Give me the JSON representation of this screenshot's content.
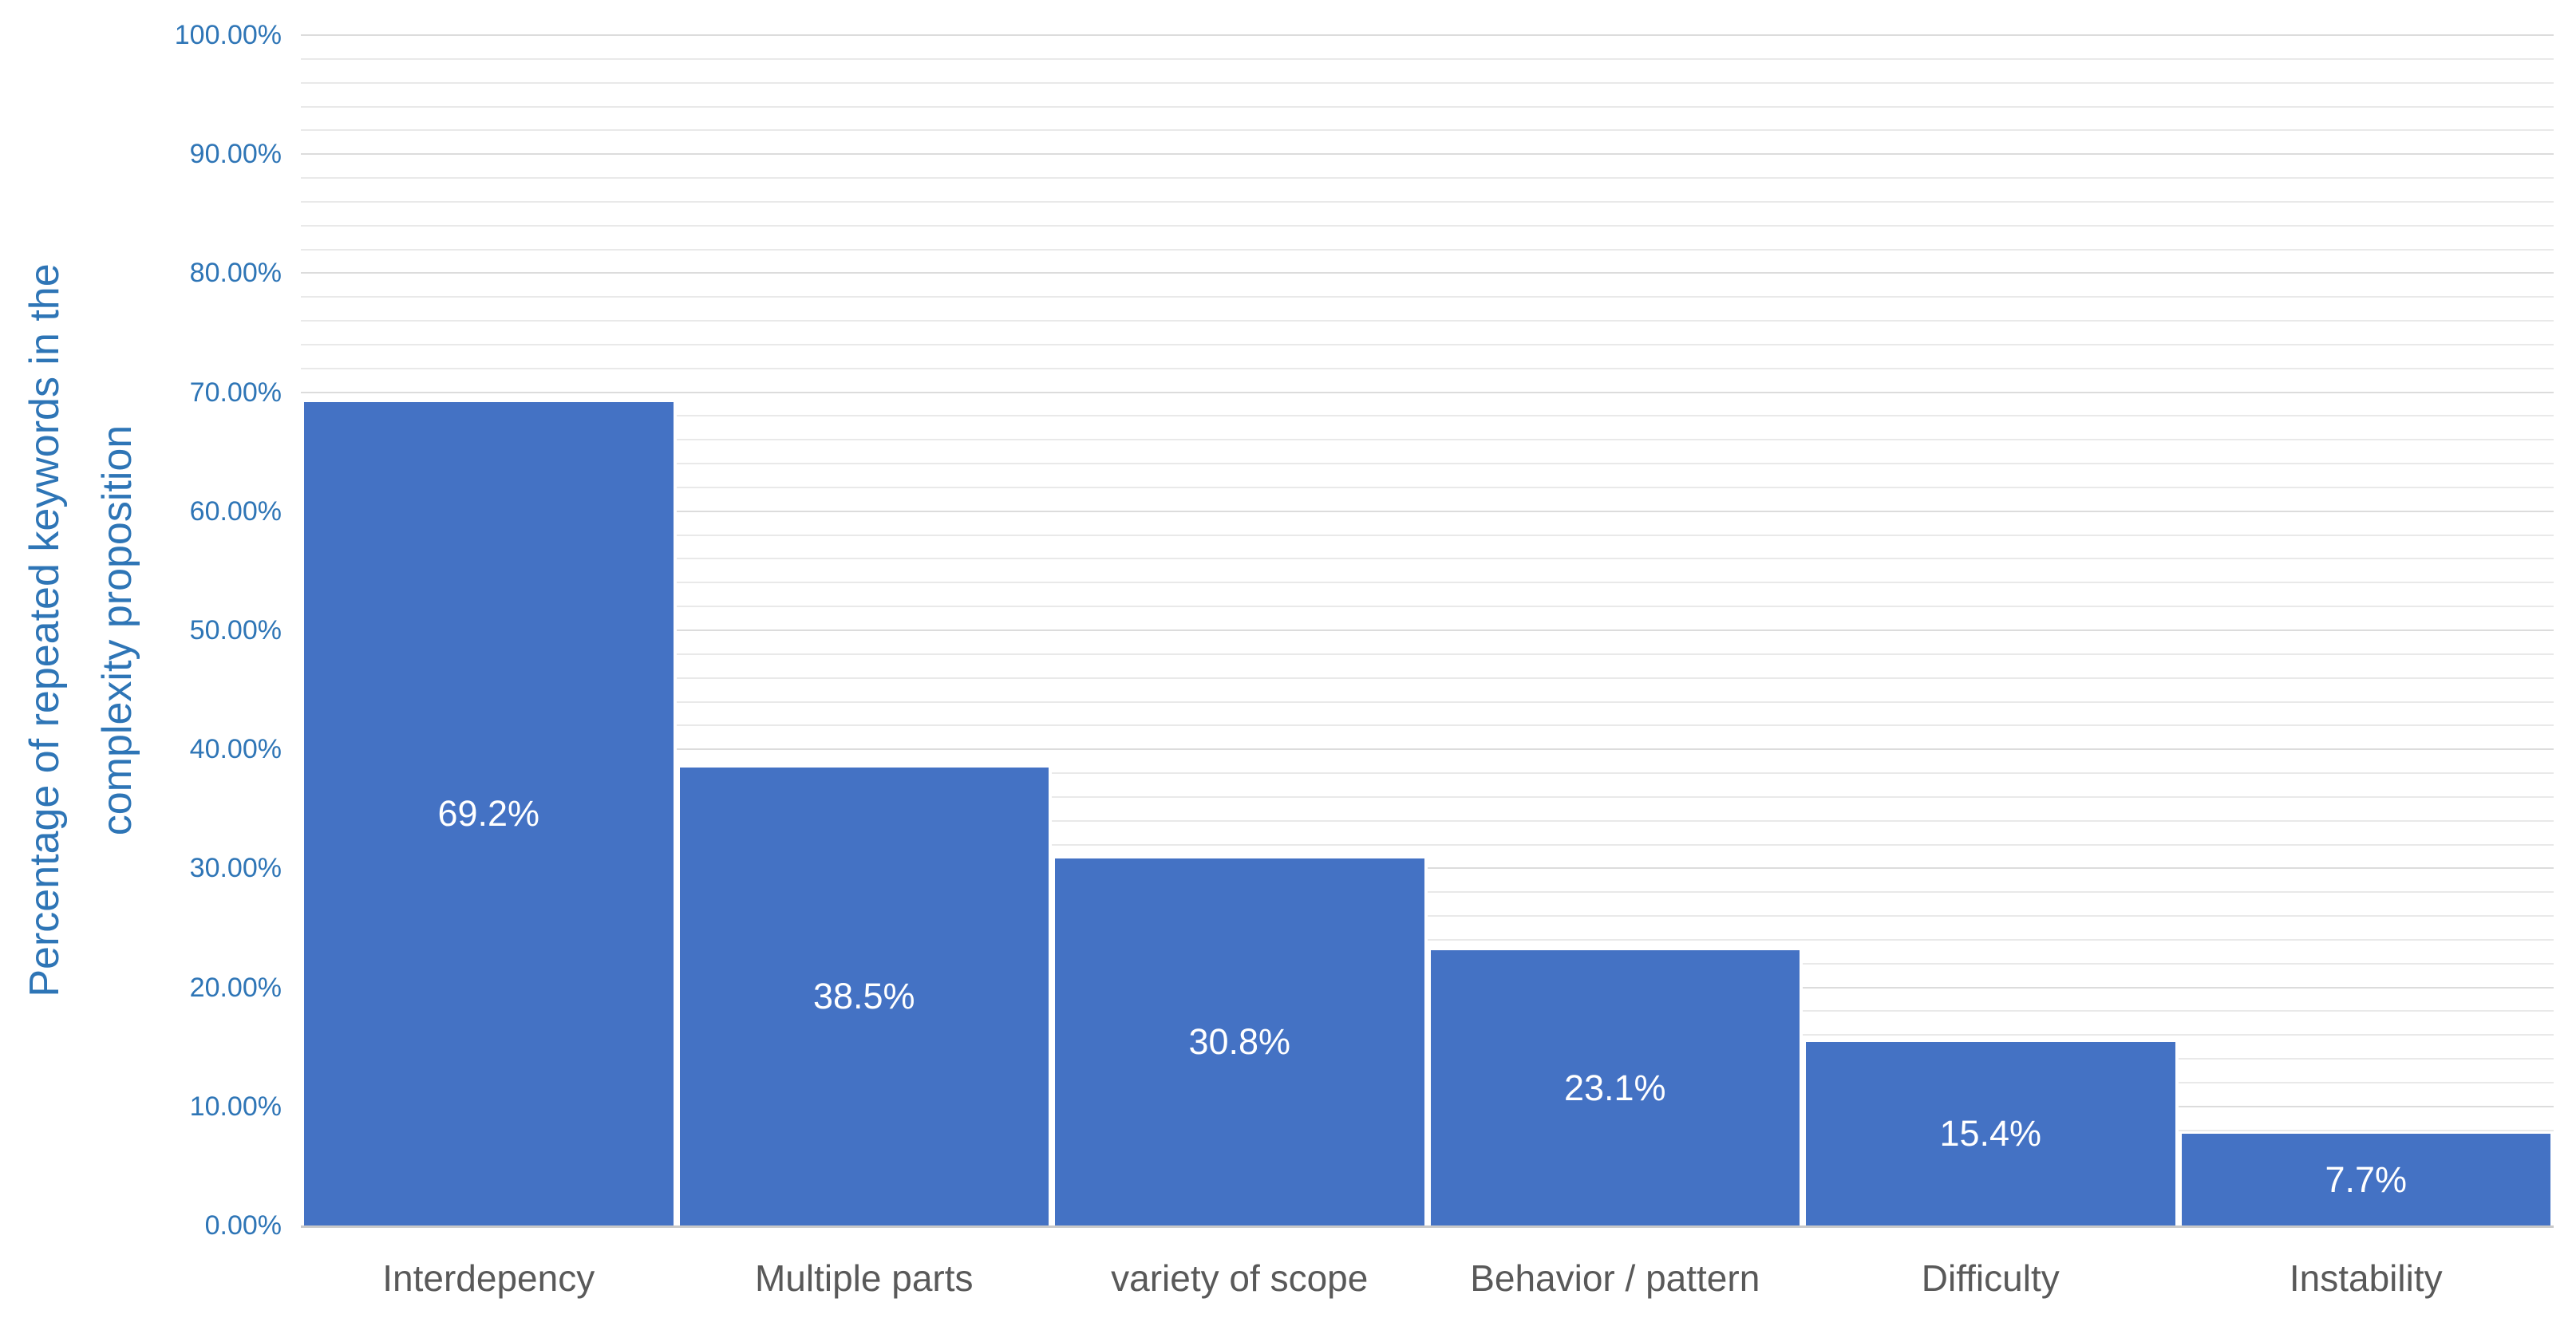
{
  "chart_data": {
    "type": "bar",
    "title": "",
    "categories": [
      "Interdepency",
      "Multiple parts",
      "variety of scope",
      "Behavior / pattern",
      "Difficulty",
      "Instability"
    ],
    "values": [
      69.2,
      38.5,
      30.8,
      23.1,
      15.4,
      7.7
    ],
    "data_labels": [
      "69.2%",
      "38.5%",
      "30.8%",
      "23.1%",
      "15.4%",
      "7.7%"
    ],
    "ylabel_lines": [
      "Percentage of repeated keywords in the",
      "complexity proposition"
    ],
    "xlabel": "",
    "y_axis": {
      "min": 0,
      "max": 100,
      "major_tick_step": 10,
      "minor_gridline_step": 2,
      "tick_labels": [
        "100.00%",
        "90.00%",
        "80.00%",
        "70.00%",
        "60.00%",
        "50.00%",
        "40.00%",
        "30.00%",
        "20.00%",
        "10.00%",
        "0.00%"
      ],
      "tick_values": [
        100,
        90,
        80,
        70,
        60,
        50,
        40,
        30,
        20,
        10,
        0
      ]
    },
    "legend": "none",
    "grid": "horizontal minor gridlines every 2%, major every 10%",
    "data_label_position": "inside-center",
    "colors": {
      "bar_fill": "#4472C4",
      "bar_separator": "#FFFFFF",
      "axis_text": "#2E75B6",
      "category_text": "#595959",
      "data_label_text": "#FFFFFF",
      "gridline_minor": "#E9E9E9",
      "gridline_major": "#DCDCDC",
      "axis_line": "#C9C9C9",
      "background": "#FFFFFF"
    }
  }
}
